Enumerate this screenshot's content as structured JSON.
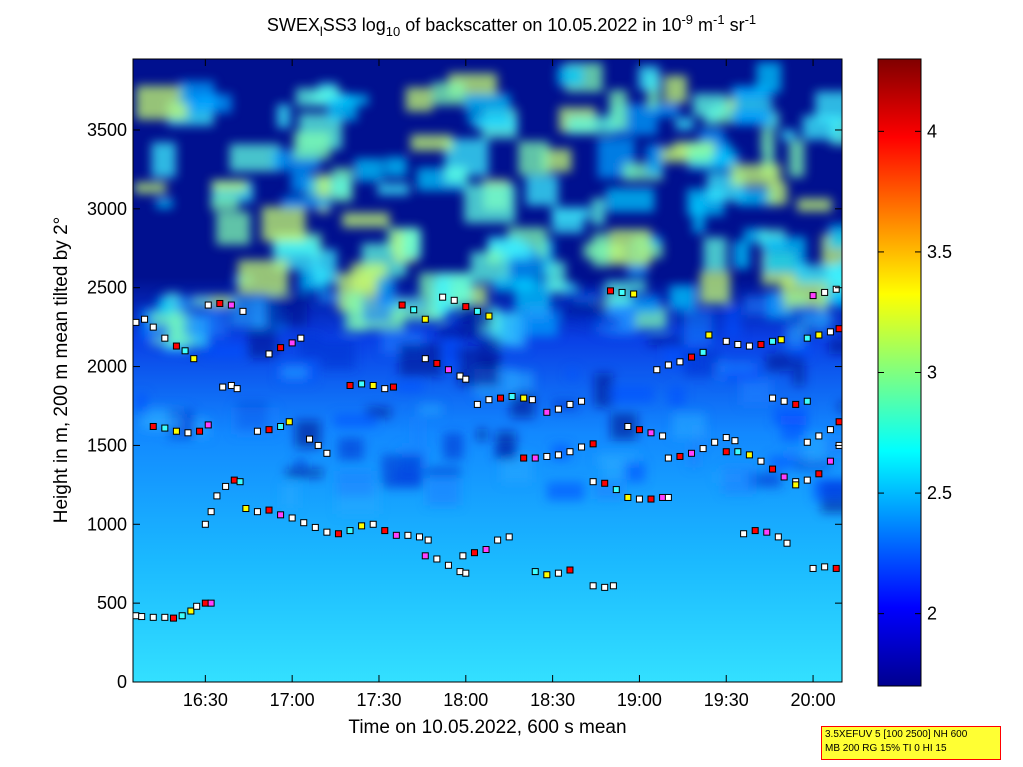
{
  "chart_data": {
    "type": "heatmap",
    "title": {
      "main": "SWEX",
      "sub1": "l",
      "mid": "SS3 log",
      "sub2": "10",
      "mid2": " of backscatter on 10.05.2022 in 10",
      "sup1": "-9",
      "mid3": " m",
      "sup2": "-1",
      "mid4": " sr",
      "sup3": "-1"
    },
    "xlabel": "Time on 10.05.2022, 600 s mean",
    "ylabel": "Height in m, 200 m mean tilted by 2°",
    "xlim_minutes": [
      965,
      1210
    ],
    "ylim": [
      0,
      3950
    ],
    "x_ticks": [
      {
        "minutes": 990,
        "label": "16:30"
      },
      {
        "minutes": 1020,
        "label": "17:00"
      },
      {
        "minutes": 1050,
        "label": "17:30"
      },
      {
        "minutes": 1080,
        "label": "18:00"
      },
      {
        "minutes": 1110,
        "label": "18:30"
      },
      {
        "minutes": 1140,
        "label": "19:00"
      },
      {
        "minutes": 1170,
        "label": "19:30"
      },
      {
        "minutes": 1200,
        "label": "20:00"
      }
    ],
    "y_ticks": [
      {
        "value": 0,
        "label": "0"
      },
      {
        "value": 500,
        "label": "500"
      },
      {
        "value": 1000,
        "label": "1000"
      },
      {
        "value": 1500,
        "label": "1500"
      },
      {
        "value": 2000,
        "label": "2000"
      },
      {
        "value": 2500,
        "label": "2500"
      },
      {
        "value": 3000,
        "label": "3000"
      },
      {
        "value": 3500,
        "label": "3500"
      }
    ],
    "colorbar": {
      "range": [
        1.7,
        4.3
      ],
      "ticks": [
        {
          "value": 2,
          "label": "2"
        },
        {
          "value": 2.5,
          "label": "2.5"
        },
        {
          "value": 3,
          "label": "3"
        },
        {
          "value": 3.5,
          "label": "3.5"
        },
        {
          "value": 4,
          "label": "4"
        }
      ],
      "colormap": "jet"
    },
    "layer_markers": [
      {
        "t": [
          966,
          968,
          972,
          976,
          979,
          982,
          985,
          987,
          990,
          992
        ],
        "h": [
          420,
          415,
          410,
          410,
          405,
          420,
          450,
          480,
          500,
          500
        ]
      },
      {
        "t": [
          966,
          969,
          972,
          976,
          980,
          983,
          986
        ],
        "h": [
          2280,
          2300,
          2250,
          2180,
          2130,
          2100,
          2050
        ]
      },
      {
        "t": [
          991,
          995,
          999,
          1003
        ],
        "h": [
          2390,
          2400,
          2390,
          2350
        ]
      },
      {
        "t": [
          996,
          999,
          1001
        ],
        "h": [
          1870,
          1880,
          1860
        ]
      },
      {
        "t": [
          972,
          976,
          980,
          984,
          988,
          991
        ],
        "h": [
          1620,
          1610,
          1590,
          1580,
          1590,
          1630
        ]
      },
      {
        "t": [
          990,
          992,
          994,
          997,
          1000,
          1002
        ],
        "h": [
          1000,
          1080,
          1180,
          1240,
          1280,
          1270
        ]
      },
      {
        "t": [
          1004,
          1008,
          1012,
          1016,
          1020,
          1024,
          1028,
          1032,
          1036,
          1040,
          1044,
          1048,
          1052,
          1056,
          1060,
          1064,
          1067
        ],
        "h": [
          1100,
          1080,
          1090,
          1060,
          1040,
          1010,
          980,
          950,
          940,
          960,
          990,
          1000,
          960,
          930,
          930,
          920,
          900
        ]
      },
      {
        "t": [
          1008,
          1012,
          1016,
          1019
        ],
        "h": [
          1590,
          1600,
          1620,
          1650
        ]
      },
      {
        "t": [
          1012,
          1016,
          1020,
          1023
        ],
        "h": [
          2080,
          2120,
          2150,
          2180
        ]
      },
      {
        "t": [
          1026,
          1029,
          1032
        ],
        "h": [
          1540,
          1500,
          1450
        ]
      },
      {
        "t": [
          1040,
          1044,
          1048,
          1052,
          1055
        ],
        "h": [
          1880,
          1890,
          1880,
          1860,
          1870
        ]
      },
      {
        "t": [
          1066,
          1070,
          1074,
          1078,
          1080
        ],
        "h": [
          800,
          780,
          740,
          700,
          690
        ]
      },
      {
        "t": [
          1058,
          1062,
          1066
        ],
        "h": [
          2390,
          2360,
          2300
        ]
      },
      {
        "t": [
          1066,
          1070,
          1074,
          1078,
          1080
        ],
        "h": [
          2050,
          2020,
          1980,
          1940,
          1920
        ]
      },
      {
        "t": [
          1072,
          1076,
          1080,
          1084,
          1088
        ],
        "h": [
          2440,
          2420,
          2380,
          2350,
          2320
        ]
      },
      {
        "t": [
          1079,
          1083,
          1087,
          1091,
          1095
        ],
        "h": [
          800,
          820,
          840,
          900,
          920
        ]
      },
      {
        "t": [
          1084,
          1088,
          1092,
          1096,
          1100,
          1103
        ],
        "h": [
          1760,
          1790,
          1800,
          1810,
          1800,
          1790
        ]
      },
      {
        "t": [
          1100,
          1104,
          1108,
          1112,
          1116,
          1120,
          1124
        ],
        "h": [
          1420,
          1420,
          1430,
          1440,
          1460,
          1490,
          1510
        ]
      },
      {
        "t": [
          1104,
          1108,
          1112,
          1116
        ],
        "h": [
          700,
          680,
          690,
          710
        ]
      },
      {
        "t": [
          1108,
          1112,
          1116,
          1120
        ],
        "h": [
          1710,
          1730,
          1760,
          1780
        ]
      },
      {
        "t": [
          1124,
          1128,
          1132,
          1136,
          1140,
          1144,
          1148,
          1150
        ],
        "h": [
          1270,
          1260,
          1220,
          1170,
          1160,
          1160,
          1170,
          1170
        ]
      },
      {
        "t": [
          1124,
          1128,
          1131
        ],
        "h": [
          610,
          600,
          610
        ]
      },
      {
        "t": [
          1130,
          1134,
          1138
        ],
        "h": [
          2480,
          2470,
          2460
        ]
      },
      {
        "t": [
          1136,
          1140,
          1144,
          1148
        ],
        "h": [
          1620,
          1600,
          1580,
          1560
        ]
      },
      {
        "t": [
          1146,
          1150,
          1154,
          1158,
          1162,
          1164
        ],
        "h": [
          1980,
          2010,
          2030,
          2060,
          2090,
          2200
        ]
      },
      {
        "t": [
          1150,
          1154,
          1158,
          1162,
          1166,
          1170,
          1173
        ],
        "h": [
          1420,
          1430,
          1450,
          1480,
          1520,
          1550,
          1530
        ]
      },
      {
        "t": [
          1170,
          1174,
          1178,
          1182,
          1186,
          1190,
          1194
        ],
        "h": [
          1460,
          1460,
          1440,
          1400,
          1350,
          1300,
          1270
        ]
      },
      {
        "t": [
          1170,
          1174,
          1178,
          1182,
          1186,
          1189
        ],
        "h": [
          2160,
          2140,
          2130,
          2140,
          2160,
          2170
        ]
      },
      {
        "t": [
          1176,
          1180,
          1184,
          1188,
          1191
        ],
        "h": [
          940,
          960,
          950,
          920,
          880
        ]
      },
      {
        "t": [
          1186,
          1190,
          1194,
          1198
        ],
        "h": [
          1800,
          1780,
          1760,
          1780
        ]
      },
      {
        "t": [
          1194,
          1198,
          1202,
          1206,
          1209
        ],
        "h": [
          1250,
          1280,
          1320,
          1400,
          1500
        ]
      },
      {
        "t": [
          1198,
          1202,
          1206,
          1209
        ],
        "h": [
          1520,
          1560,
          1600,
          1650
        ]
      },
      {
        "t": [
          1198,
          1202,
          1206,
          1209
        ],
        "h": [
          2180,
          2200,
          2220,
          2240
        ]
      },
      {
        "t": [
          1200,
          1204,
          1208
        ],
        "h": [
          2450,
          2470,
          2490
        ]
      },
      {
        "t": [
          1200,
          1204,
          1208
        ],
        "h": [
          720,
          730,
          720
        ]
      }
    ]
  },
  "info_box": {
    "line1": "3.5XEFUV 5 [100 2500] NH 600",
    "line2": "MB 200 RG 15% TI 0 HI 15"
  }
}
